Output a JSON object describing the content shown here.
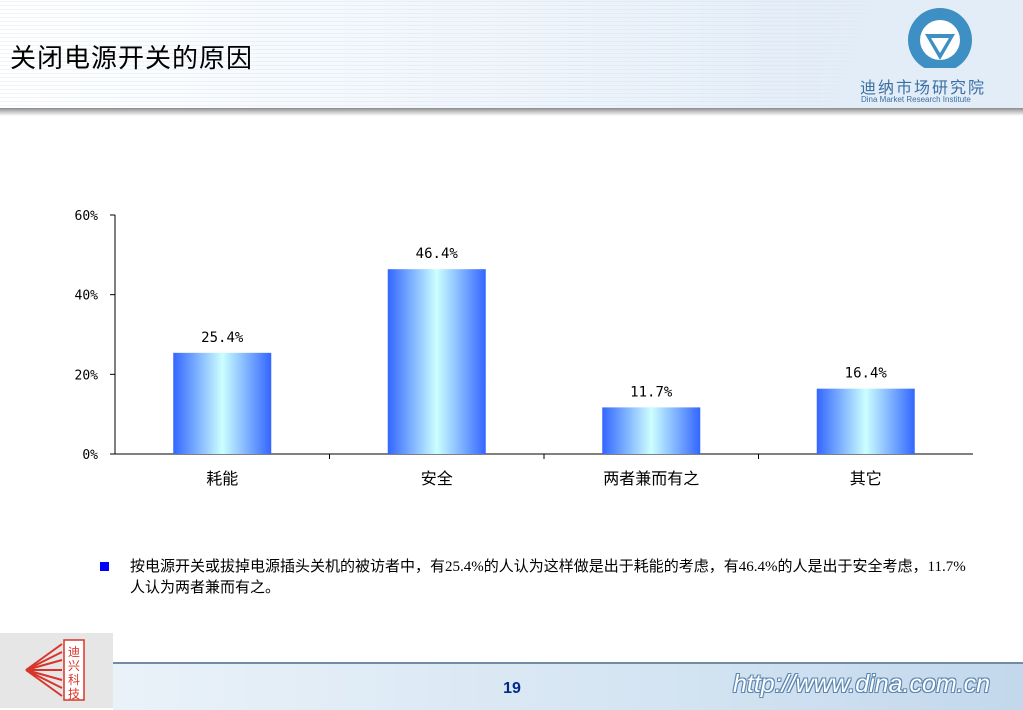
{
  "header": {
    "title": "关闭电源开关的原因"
  },
  "logo": {
    "name": "迪纳市场研究院",
    "subtitle": "Dina Market Research Institute"
  },
  "chart_data": {
    "type": "bar",
    "categories": [
      "耗能",
      "安全",
      "两者兼而有之",
      "其它"
    ],
    "values": [
      25.4,
      46.4,
      11.7,
      16.4
    ],
    "value_labels": [
      "25.4%",
      "46.4%",
      "11.7%",
      "16.4%"
    ],
    "ylim": [
      0,
      60
    ],
    "yticks": [
      0,
      20,
      40,
      60
    ],
    "ytick_labels": [
      "0%",
      "20%",
      "40%",
      "60%"
    ],
    "grid": false,
    "bar_colors": {
      "edge": "#3366ff",
      "center": "#ccffff"
    }
  },
  "note": {
    "text": "按电源开关或拔掉电源插头关机的被访者中，有25.4%的人认为这样做是出于耗能的考虑，有46.4%的人是出于安全考虑，11.7%人认为两者兼而有之。"
  },
  "footer": {
    "page_number": "19",
    "url": "http://www.dina.com.cn",
    "stamp_text": "迪兴科技"
  }
}
